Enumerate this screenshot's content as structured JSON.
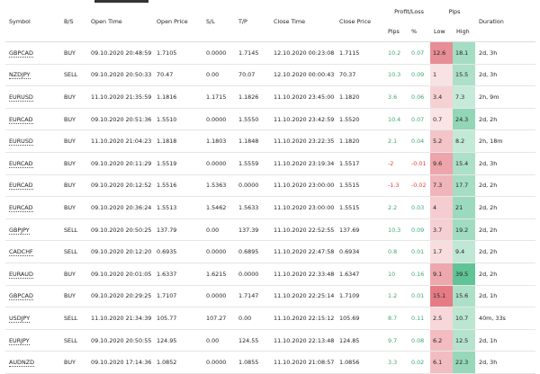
{
  "table": {
    "columns": [
      "Symbol",
      "B/S",
      "Open Time",
      "Open Price",
      "S/L",
      "T/P",
      "Close Time",
      "Close Price"
    ],
    "groups": [
      {
        "title": "Profit/Loss",
        "columns": [
          "Pips",
          "%"
        ]
      },
      {
        "title": "Pips",
        "columns": [
          "Low",
          "High"
        ]
      }
    ],
    "columns_after": [
      "Duration"
    ],
    "rows": [
      [
        "GBPCAD",
        "BUY",
        "09.10.2020 20:48:59",
        "1.7105",
        "0.0000",
        "1.7145",
        "12.10.2020 00:23:08",
        "1.7115",
        "10.2",
        "0.07",
        "12.6",
        "18.1",
        "2d, 3h"
      ],
      [
        "NZDJPY",
        "SELL",
        "09.10.2020 20:50:33",
        "70.47",
        "0.00",
        "70.07",
        "12.10.2020 00:00:43",
        "70.37",
        "10.3",
        "0.09",
        "1",
        "15.5",
        "2d, 3h"
      ],
      [
        "EURUSD",
        "BUY",
        "11.10.2020 21:35:59",
        "1.1816",
        "1.1715",
        "1.1826",
        "11.10.2020 23:45:00",
        "1.1820",
        "3.6",
        "0.06",
        "3.4",
        "7.3",
        "2h, 9m"
      ],
      [
        "EURCAD",
        "BUY",
        "09.10.2020 20:51:36",
        "1.5510",
        "0.0000",
        "1.5550",
        "11.10.2020 23:42:59",
        "1.5520",
        "10.4",
        "0.07",
        "0.7",
        "24.3",
        "2d, 2h"
      ],
      [
        "EURUSD",
        "BUY",
        "11.10.2020 21:04:23",
        "1.1818",
        "1.1803",
        "1.1848",
        "11.10.2020 23:22:35",
        "1.1820",
        "2.1",
        "0.04",
        "5.2",
        "8.2",
        "2h, 18m"
      ],
      [
        "EURCAD",
        "BUY",
        "09.10.2020 20:11:29",
        "1.5519",
        "0.0000",
        "1.5559",
        "11.10.2020 23:19:34",
        "1.5517",
        "-2",
        "-0.01",
        "9.6",
        "15.4",
        "2d, 3h"
      ],
      [
        "EURCAD",
        "BUY",
        "09.10.2020 20:12:52",
        "1.5516",
        "1.5363",
        "0.0000",
        "11.10.2020 23:00:00",
        "1.5515",
        "-1.3",
        "-0.02",
        "7.3",
        "17.7",
        "2d, 2h"
      ],
      [
        "EURCAD",
        "BUY",
        "09.10.2020 20:36:24",
        "1.5513",
        "1.5462",
        "1.5633",
        "11.10.2020 23:00:00",
        "1.5515",
        "2.2",
        "0.03",
        "4",
        "21",
        "2d, 2h"
      ],
      [
        "GBPJPY",
        "SELL",
        "09.10.2020 20:50:25",
        "137.79",
        "0.00",
        "137.39",
        "11.10.2020 22:52:55",
        "137.69",
        "10.3",
        "0.09",
        "3.7",
        "19.2",
        "2d, 2h"
      ],
      [
        "CADCHF",
        "SELL",
        "09.10.2020 20:12:20",
        "0.6935",
        "0.0000",
        "0.6895",
        "11.10.2020 22:47:58",
        "0.6934",
        "0.8",
        "0.01",
        "1.7",
        "9.4",
        "2d, 2h"
      ],
      [
        "EURAUD",
        "BUY",
        "09.10.2020 20:01:05",
        "1.6337",
        "1.6215",
        "0.0000",
        "11.10.2020 22:33:48",
        "1.6347",
        "10",
        "0.16",
        "9.1",
        "39.5",
        "2d, 2h"
      ],
      [
        "GBPCAD",
        "BUY",
        "09.10.2020 20:29:25",
        "1.7107",
        "0.0000",
        "1.7147",
        "11.10.2020 22:25:14",
        "1.7109",
        "1.2",
        "0.01",
        "15.1",
        "15.6",
        "2d, 1h"
      ],
      [
        "USDJPY",
        "SELL",
        "11.10.2020 21:34:39",
        "105.77",
        "107.27",
        "0.00",
        "11.10.2020 22:15:12",
        "105.69",
        "8.7",
        "0.11",
        "2.5",
        "10.7",
        "40m, 33s"
      ],
      [
        "EURJPY",
        "SELL",
        "09.10.2020 20:50:55",
        "124.95",
        "0.00",
        "124.55",
        "11.10.2020 22:13:48",
        "124.85",
        "9.7",
        "0.08",
        "6.2",
        "12.5",
        "2d, 1h"
      ],
      [
        "AUDNZD",
        "BUY",
        "09.10.2020 17:14:36",
        "1.0852",
        "0.0000",
        "1.0855",
        "11.10.2020 21:08:57",
        "1.0856",
        "3.3",
        "0.02",
        "6.1",
        "22.3",
        "2d, 3h"
      ]
    ]
  }
}
